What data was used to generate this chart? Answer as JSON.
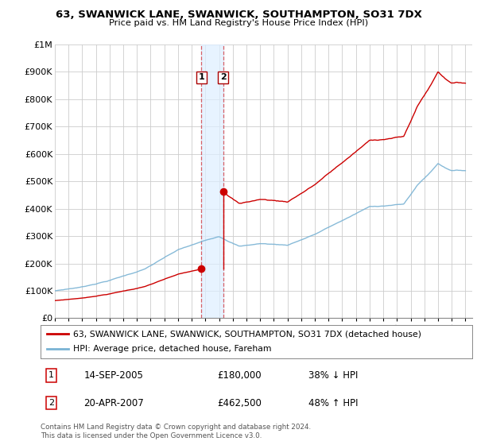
{
  "title": "63, SWANWICK LANE, SWANWICK, SOUTHAMPTON, SO31 7DX",
  "subtitle": "Price paid vs. HM Land Registry's House Price Index (HPI)",
  "ylabel_ticks": [
    "£0",
    "£100K",
    "£200K",
    "£300K",
    "£400K",
    "£500K",
    "£600K",
    "£700K",
    "£800K",
    "£900K",
    "£1M"
  ],
  "ytick_values": [
    0,
    100000,
    200000,
    300000,
    400000,
    500000,
    600000,
    700000,
    800000,
    900000,
    1000000
  ],
  "ylim": [
    0,
    1000000
  ],
  "xlim_start": 1995.0,
  "xlim_end": 2025.5,
  "t1_year": 2005.71,
  "t1_price": 180000,
  "t2_year": 2007.3,
  "t2_price": 462500,
  "hpi_line_color": "#7ab3d4",
  "property_line_color": "#cc0000",
  "vline_color": "#cc0000",
  "highlight_fill": "#ddeeff",
  "legend_entries": [
    "63, SWANWICK LANE, SWANWICK, SOUTHAMPTON, SO31 7DX (detached house)",
    "HPI: Average price, detached house, Fareham"
  ],
  "transaction_table": [
    {
      "num": "1",
      "date": "14-SEP-2005",
      "price": "£180,000",
      "change": "38% ↓ HPI"
    },
    {
      "num": "2",
      "date": "20-APR-2007",
      "price": "£462,500",
      "change": "48% ↑ HPI"
    }
  ],
  "footnote": "Contains HM Land Registry data © Crown copyright and database right 2024.\nThis data is licensed under the Open Government Licence v3.0.",
  "background_color": "#ffffff",
  "grid_color": "#cccccc"
}
